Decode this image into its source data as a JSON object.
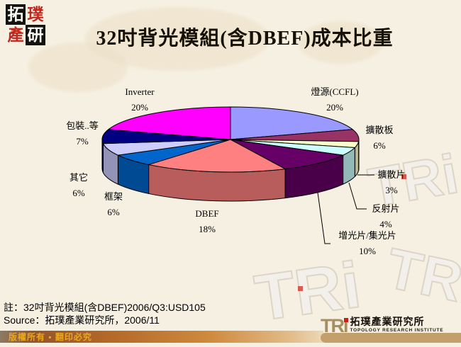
{
  "page": {
    "title": "32吋背光模組(含DBEF)成本比重"
  },
  "corner_logo": {
    "char1": "拓",
    "char2": "璞",
    "char3": "產",
    "char4": "研"
  },
  "chart_data": {
    "type": "pie",
    "style": "3d",
    "title": "32吋背光模組(含DBEF)成本比重",
    "start_angle_deg": 0,
    "direction": "clockwise",
    "legend_position": "labels-around-pie",
    "slices": [
      {
        "label": "燈源(CCFL)",
        "value": 20,
        "pct": "20%",
        "color": "#9999FF"
      },
      {
        "label": "擴散板",
        "value": 6,
        "pct": "6%",
        "color": "#993366"
      },
      {
        "label": "擴散片",
        "value": 3,
        "pct": "3%",
        "color": "#FFFFCC"
      },
      {
        "label": "反射片",
        "value": 4,
        "pct": "4%",
        "color": "#CCFFFF"
      },
      {
        "label": "增光片/集光片",
        "value": 10,
        "pct": "10%",
        "color": "#660066"
      },
      {
        "label": "DBEF",
        "value": 18,
        "pct": "18%",
        "color": "#FF8080"
      },
      {
        "label": "框架",
        "value": 6,
        "pct": "6%",
        "color": "#0066CC"
      },
      {
        "label": "其它",
        "value": 6,
        "pct": "6%",
        "color": "#CCCCFF"
      },
      {
        "label": "包裝..等",
        "value": 7,
        "pct": "7%",
        "color": "#000080"
      },
      {
        "label": "Inverter",
        "value": 20,
        "pct": "20%",
        "color": "#FF00FF"
      }
    ]
  },
  "notes": {
    "note": "註：32吋背光模組(含DBEF)2006/Q3:USD105",
    "source": "Source：拓璞產業研究所，2006/11"
  },
  "footer": {
    "copyright": "版權所有 ▪ 翻印必究",
    "brand": "TRi",
    "brand_cn": "拓璞產業研究所",
    "brand_en": "TOPOLOGY RESEARCH INSTITUTE"
  },
  "watermark": {
    "text": "TRi"
  }
}
